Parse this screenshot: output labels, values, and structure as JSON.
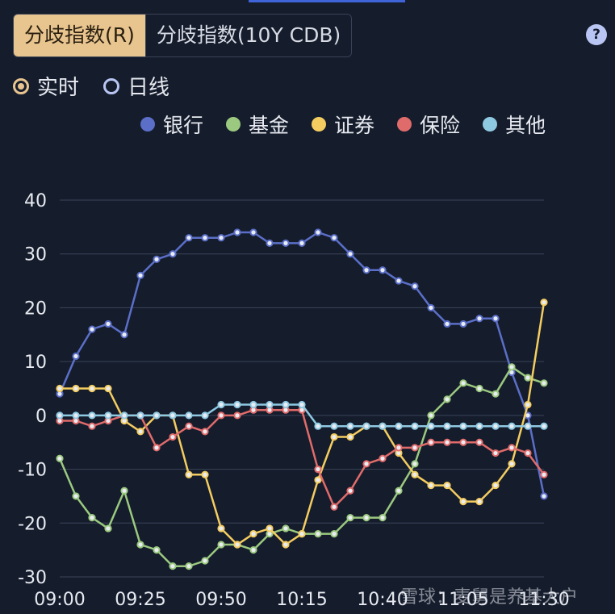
{
  "tabs": [
    {
      "label": "分歧指数(R)",
      "active": true
    },
    {
      "label": "分歧指数(10Y CDB)",
      "active": false
    }
  ],
  "help_label": "?",
  "radios": [
    {
      "label": "实时",
      "checked": true
    },
    {
      "label": "日线",
      "checked": false
    }
  ],
  "watermark": "雪球：麦舅是养基大户",
  "chart_data": {
    "type": "line",
    "x_ticks": [
      "09:00",
      "09:25",
      "09:50",
      "10:15",
      "10:40",
      "11:05",
      "11:30"
    ],
    "y_ticks": [
      40,
      30,
      20,
      10,
      0,
      -10,
      -20,
      -30
    ],
    "ylim": [
      -30,
      40
    ],
    "grid": true,
    "legend_position": "top-right",
    "x": [
      "09:00",
      "09:05",
      "09:10",
      "09:15",
      "09:20",
      "09:25",
      "09:30",
      "09:35",
      "09:40",
      "09:45",
      "09:50",
      "09:55",
      "10:00",
      "10:05",
      "10:10",
      "10:15",
      "10:20",
      "10:25",
      "10:30",
      "10:35",
      "10:40",
      "10:45",
      "10:50",
      "10:55",
      "11:00",
      "11:05",
      "11:10",
      "11:15",
      "11:20",
      "11:25",
      "11:30"
    ],
    "series": [
      {
        "name": "银行",
        "color": "#5b6fc8",
        "values": [
          4,
          11,
          16,
          17,
          15,
          26,
          29,
          30,
          33,
          33,
          33,
          34,
          34,
          32,
          32,
          32,
          34,
          33,
          30,
          27,
          27,
          25,
          24,
          20,
          17,
          17,
          18,
          18,
          8,
          0,
          -15
        ]
      },
      {
        "name": "基金",
        "color": "#9bc97f",
        "values": [
          -8,
          -15,
          -19,
          -21,
          -14,
          -24,
          -25,
          -28,
          -28,
          -27,
          -24,
          -24,
          -25,
          -22,
          -21,
          -22,
          -22,
          -22,
          -19,
          -19,
          -19,
          -14,
          -9,
          0,
          3,
          6,
          5,
          4,
          9,
          7,
          6
        ]
      },
      {
        "name": "证券",
        "color": "#f4cd60",
        "values": [
          5,
          5,
          5,
          5,
          -1,
          -3,
          0,
          0,
          -11,
          -11,
          -21,
          -24,
          -22,
          -21,
          -24,
          -22,
          -12,
          -4,
          -4,
          -2,
          -2,
          -7,
          -11,
          -13,
          -13,
          -16,
          -16,
          -13,
          -9,
          2,
          21
        ]
      },
      {
        "name": "保险",
        "color": "#e06b6b",
        "values": [
          -1,
          -1,
          -2,
          -1,
          0,
          0,
          -6,
          -4,
          -2,
          -3,
          0,
          0,
          1,
          1,
          1,
          1,
          -10,
          -17,
          -14,
          -9,
          -8,
          -6,
          -6,
          -5,
          -5,
          -5,
          -5,
          -7,
          -6,
          -7,
          -11
        ]
      },
      {
        "name": "其他",
        "color": "#8ec9e2",
        "values": [
          0,
          0,
          0,
          0,
          0,
          0,
          0,
          0,
          0,
          0,
          2,
          2,
          2,
          2,
          2,
          2,
          -2,
          -2,
          -2,
          -2,
          -2,
          -2,
          -2,
          -2,
          -2,
          -2,
          -2,
          -2,
          -2,
          -2,
          -2
        ]
      }
    ]
  }
}
